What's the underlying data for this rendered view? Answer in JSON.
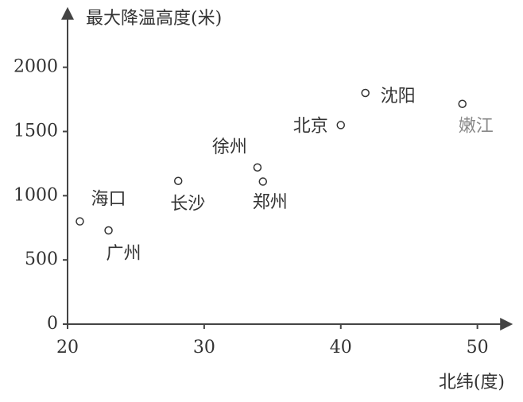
{
  "chart_data": {
    "type": "scatter",
    "x_label": "北纬(度)",
    "y_label": "最大降温高度(米)",
    "labels": [
      "海口",
      "广州",
      "长沙",
      "徐州",
      "郑州",
      "北京",
      "沈阳",
      "嫩江"
    ],
    "x": [
      20.9,
      23.0,
      28.1,
      33.9,
      34.3,
      40.0,
      41.8,
      48.9
    ],
    "values": [
      800,
      730,
      1115,
      1220,
      1110,
      1550,
      1800,
      1715
    ],
    "xlim": [
      20,
      52
    ],
    "xticks": [
      20,
      30,
      40,
      50
    ],
    "ylim": [
      0,
      2400
    ],
    "yticks": [
      0,
      500,
      1000,
      1500,
      2000
    ],
    "grid": false
  }
}
